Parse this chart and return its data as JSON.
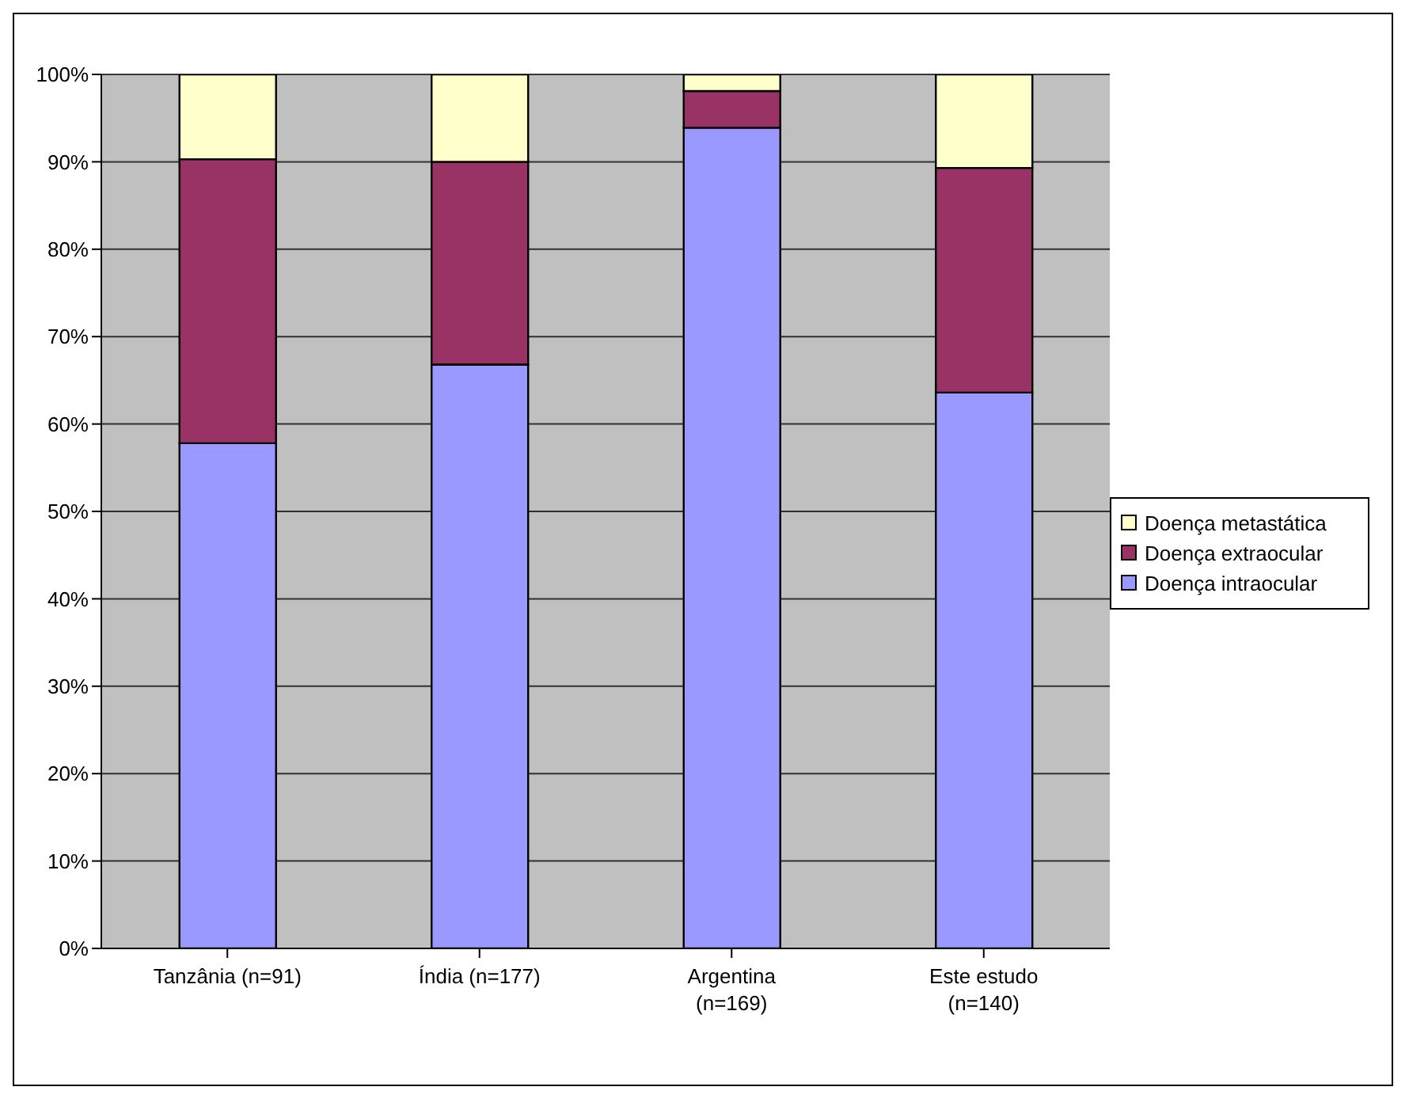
{
  "chart_data": {
    "type": "bar",
    "stacked": true,
    "categories": [
      "Tanzânia (n=91)",
      "Índia (n=177)",
      "Argentina (n=169)",
      "Este estudo (n=140)"
    ],
    "series": [
      {
        "name": "Doença intraocular",
        "color": "#9999ff",
        "values": [
          57.8,
          66.8,
          93.9,
          63.6
        ]
      },
      {
        "name": "Doença extraocular",
        "color": "#993366",
        "values": [
          32.5,
          23.2,
          4.2,
          25.7
        ]
      },
      {
        "name": "Doença metastática",
        "color": "#ffffcc",
        "values": [
          9.7,
          10,
          1.9,
          10.7
        ]
      }
    ],
    "ylim": [
      0,
      100
    ],
    "yticks": [
      {
        "value": 0,
        "label": "0%"
      },
      {
        "value": 10,
        "label": "10%"
      },
      {
        "value": 20,
        "label": "20%"
      },
      {
        "value": 30,
        "label": "30%"
      },
      {
        "value": 40,
        "label": "40%"
      },
      {
        "value": 50,
        "label": "50%"
      },
      {
        "value": 60,
        "label": "60%"
      },
      {
        "value": 70,
        "label": "70%"
      },
      {
        "value": 80,
        "label": "80%"
      },
      {
        "value": 90,
        "label": "90%"
      },
      {
        "value": 100,
        "label": "100%"
      }
    ],
    "grid": "y",
    "legend": "right"
  }
}
